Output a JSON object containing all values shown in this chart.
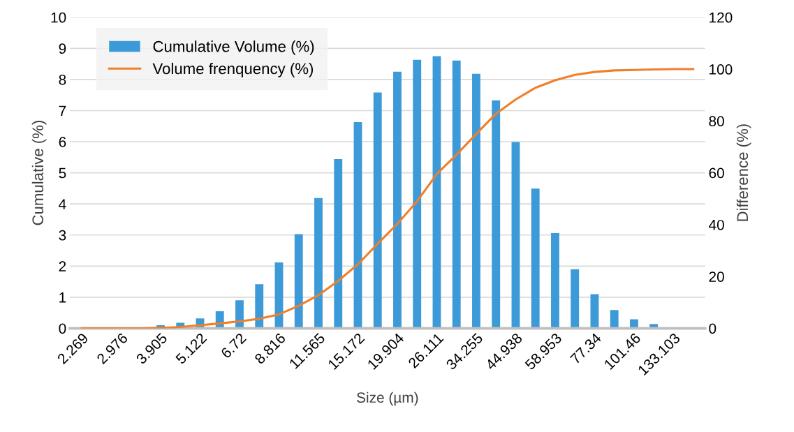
{
  "chart_data": {
    "type": "bar",
    "xlabel": "Size (µm)",
    "ylabel": "Cumulative (%)",
    "y2label": "Difference (%)",
    "categories": [
      "2.269",
      null,
      "2.976",
      null,
      "3.905",
      null,
      "5.122",
      null,
      "6.72",
      null,
      "8.816",
      null,
      "11.565",
      null,
      "15.172",
      null,
      "19.904",
      null,
      "26.111",
      null,
      "34.255",
      null,
      "44.938",
      null,
      "58.953",
      null,
      "77.34",
      null,
      "101.46",
      null,
      "133.103",
      null
    ],
    "series": [
      {
        "name": "Cumulative Volume (%)",
        "color": "#3d9ad8",
        "values": [
          0,
          0,
          0,
          0,
          0.1,
          0.18,
          0.32,
          0.55,
          0.9,
          1.42,
          2.12,
          3.03,
          4.19,
          5.44,
          6.63,
          7.58,
          8.25,
          8.63,
          8.75,
          8.61,
          8.18,
          7.33,
          5.99,
          4.49,
          3.06,
          1.9,
          1.1,
          0.59,
          0.29,
          0.14,
          0,
          0
        ]
      },
      {
        "name": "Volume frenquency (%)",
        "type": "line",
        "axis": "y2",
        "color": "#f07f2a",
        "values": [
          0,
          0,
          0,
          0,
          0.2,
          0.5,
          1.2,
          1.9,
          2.7,
          3.7,
          5.4,
          8.7,
          12.8,
          18.3,
          24.7,
          32.6,
          40.3,
          49,
          59.5,
          67,
          75,
          82.8,
          88.3,
          92.8,
          95.7,
          97.8,
          98.9,
          99.5,
          99.7,
          99.9,
          100,
          100
        ]
      }
    ],
    "ylim": [
      0,
      10
    ],
    "yticks": [
      0,
      1,
      2,
      3,
      4,
      5,
      6,
      7,
      8,
      9,
      10
    ],
    "y2lim": [
      0,
      120
    ],
    "y2ticks": [
      0,
      20,
      40,
      60,
      80,
      100,
      120
    ],
    "grid": "y",
    "legend": "top left",
    "marker": "none",
    "line_style": "solid"
  }
}
